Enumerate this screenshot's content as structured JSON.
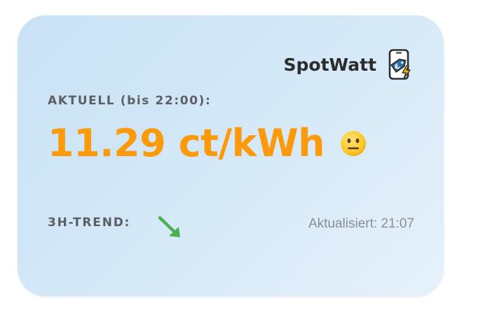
{
  "app": {
    "name": "SpotWatt",
    "logo_icon": "phone-price-tag-euro-lightning-icon"
  },
  "current": {
    "label": "AKTUELL (bis 22:00):",
    "price": "11.29 ct/kWh",
    "mood_icon": "neutral-face-emoji",
    "price_color": "#fd9a0b"
  },
  "trend": {
    "label": "3H-TREND:",
    "direction_icon": "arrow-down-right-icon",
    "arrow_color": "#4caf50"
  },
  "status": {
    "updated": "Aktualisiert: 21:07"
  }
}
